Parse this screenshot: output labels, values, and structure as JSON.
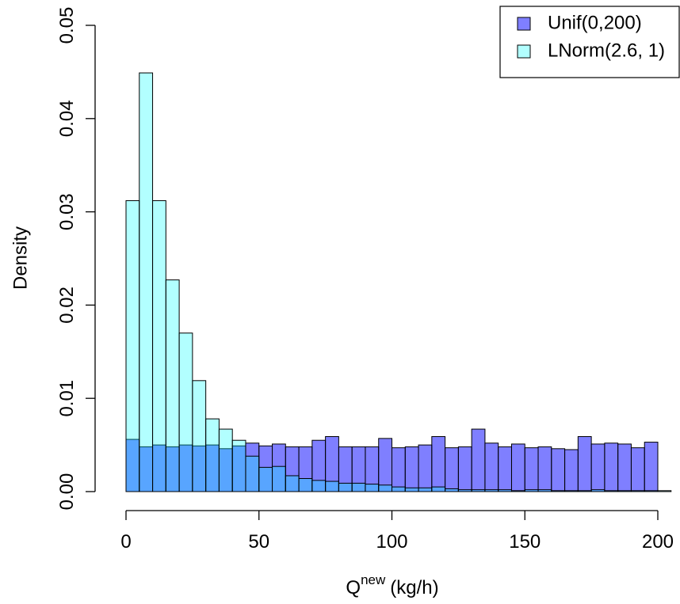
{
  "chart_data": {
    "type": "histogram",
    "xlabel": {
      "base": "Q",
      "sup": "new",
      "unit": "(kg/h)"
    },
    "ylabel": "Density",
    "xlim": [
      0,
      200
    ],
    "ylim": [
      0,
      0.05
    ],
    "xticks": [
      0,
      50,
      100,
      150,
      200
    ],
    "yticks": [
      {
        "value": 0,
        "label": "0.00"
      },
      {
        "value": 0.01,
        "label": "0.01"
      },
      {
        "value": 0.02,
        "label": "0.02"
      },
      {
        "value": 0.03,
        "label": "0.03"
      },
      {
        "value": 0.04,
        "label": "0.04"
      },
      {
        "value": 0.05,
        "label": "0.05"
      }
    ],
    "legend": "top-right",
    "series": [
      {
        "name": "Unif(0,200)",
        "color": "#0000ff80",
        "bins": [
          0,
          5,
          10,
          15,
          20,
          25,
          30,
          35,
          40,
          45,
          50,
          55,
          60,
          65,
          70,
          75,
          80,
          85,
          90,
          95,
          100,
          105,
          110,
          115,
          120,
          125,
          130,
          135,
          140,
          145,
          150,
          155,
          160,
          165,
          170,
          175,
          180,
          185,
          190,
          195,
          200
        ],
        "values": [
          0.0056,
          0.0048,
          0.005,
          0.0048,
          0.005,
          0.0049,
          0.005,
          0.0046,
          0.0049,
          0.0052,
          0.0049,
          0.0051,
          0.0048,
          0.0048,
          0.0055,
          0.0059,
          0.0048,
          0.0048,
          0.0048,
          0.0057,
          0.0047,
          0.0048,
          0.005,
          0.0059,
          0.0047,
          0.0048,
          0.0067,
          0.0052,
          0.0048,
          0.0051,
          0.0047,
          0.0048,
          0.0046,
          0.0045,
          0.0059,
          0.0051,
          0.0052,
          0.0051,
          0.0047,
          0.0053
        ]
      },
      {
        "name": "LNorm(2.6, 1)",
        "color": "#00ffff4d",
        "bins": [
          0,
          5,
          10,
          15,
          20,
          25,
          30,
          35,
          40,
          45,
          50,
          55,
          60,
          65,
          70,
          75,
          80,
          85,
          90,
          95,
          100,
          105,
          110,
          115,
          120,
          125,
          130,
          135,
          140,
          145,
          150,
          155,
          160,
          165,
          170,
          175,
          180,
          185,
          190,
          195,
          200,
          205
        ],
        "values": [
          0.0312,
          0.0449,
          0.0312,
          0.0227,
          0.017,
          0.0119,
          0.0078,
          0.0067,
          0.0055,
          0.0038,
          0.0026,
          0.0027,
          0.0017,
          0.0014,
          0.0012,
          0.0011,
          0.0009,
          0.0009,
          0.0008,
          0.0007,
          0.0005,
          0.0004,
          0.0004,
          0.0005,
          0.0003,
          0.0002,
          0.0002,
          0.0002,
          0.0002,
          0.0001,
          0.0002,
          0.0002,
          0.0001,
          0.0001,
          0.0001,
          0.0002,
          0.0001,
          0.0001,
          0.0001,
          0.0001,
          0.0001
        ]
      }
    ]
  }
}
